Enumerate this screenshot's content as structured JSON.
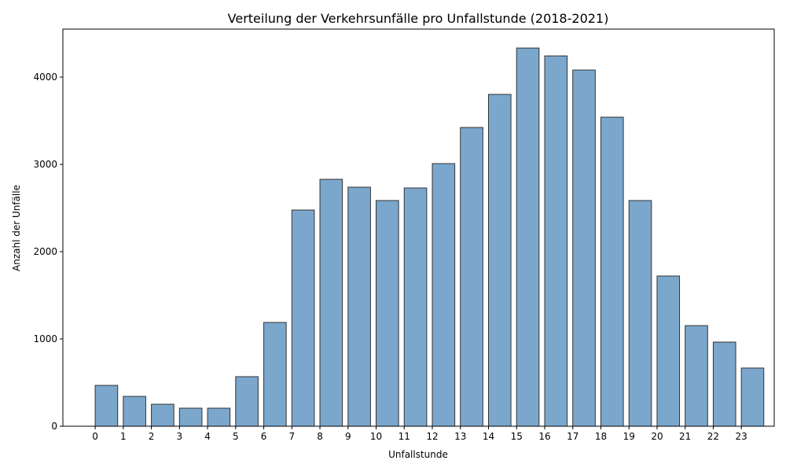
{
  "chart_data": {
    "type": "bar",
    "title": "Verteilung der Verkehrsunfälle pro Unfallstunde (2018-2021)",
    "x_label": "Unfallstunde",
    "y_label": "Anzahl der Unfälle",
    "x": [
      0,
      1,
      2,
      3,
      4,
      5,
      6,
      7,
      8,
      9,
      10,
      11,
      12,
      13,
      14,
      15,
      16,
      17,
      18,
      19,
      20,
      21,
      22,
      23
    ],
    "values": [
      468,
      342,
      252,
      207,
      207,
      568,
      1189,
      2477,
      2829,
      2739,
      2586,
      2730,
      3009,
      3423,
      3802,
      4333,
      4243,
      4081,
      3541,
      2586,
      1721,
      1153,
      964,
      667
    ],
    "color": "#7ba7cc",
    "edgecolor": "#333333",
    "xlim": [
      -1.15,
      24.17
    ],
    "xticks": [
      0,
      1,
      2,
      3,
      4,
      5,
      6,
      7,
      8,
      9,
      10,
      11,
      12,
      13,
      14,
      15,
      16,
      17,
      18,
      19,
      20,
      21,
      22,
      23
    ],
    "ylim": [
      0,
      4550
    ],
    "yticks": [
      0,
      1000,
      2000,
      3000,
      4000
    ]
  }
}
